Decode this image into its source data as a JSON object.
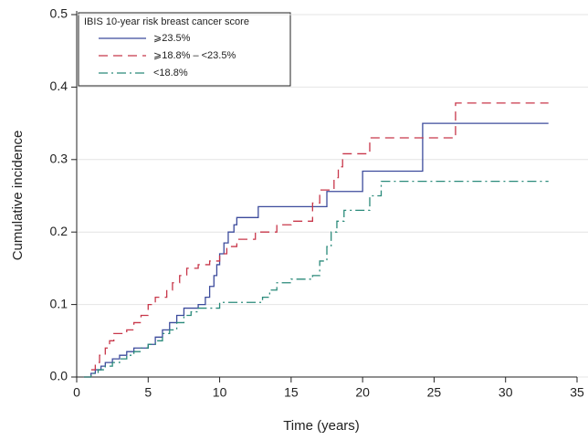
{
  "chart_data": {
    "type": "line",
    "step": "post",
    "xlabel": "Time (years)",
    "ylabel": "Cumulative incidence",
    "xlim": [
      0,
      35
    ],
    "xticks": [
      0,
      5,
      10,
      15,
      20,
      25,
      30,
      35
    ],
    "ylim": [
      0,
      0.5
    ],
    "yticks": [
      {
        "value": 0,
        "label": "0.0"
      },
      0.1,
      0.2,
      0.3,
      0.4,
      0.5
    ],
    "grid": true,
    "legend_position": "upper left",
    "legend_title": "IBIS 10-year risk breast cancer score",
    "series": [
      {
        "name": "⩾23.5%",
        "color": "#3c4b9c",
        "linestyle": "solid",
        "x": [
          0.5,
          1,
          1.3,
          1.7,
          2,
          2.5,
          3,
          3.5,
          4,
          5,
          5.5,
          6,
          6.5,
          7,
          7.5,
          8.5,
          9,
          9.3,
          9.6,
          9.8,
          10,
          10.3,
          10.6,
          11,
          11.2,
          12.7,
          17.5,
          20,
          24.2,
          33
        ],
        "values": [
          0,
          0.005,
          0.01,
          0.015,
          0.02,
          0.025,
          0.03,
          0.035,
          0.04,
          0.045,
          0.055,
          0.065,
          0.075,
          0.085,
          0.095,
          0.1,
          0.11,
          0.125,
          0.14,
          0.155,
          0.17,
          0.185,
          0.2,
          0.21,
          0.22,
          0.235,
          0.256,
          0.284,
          0.35,
          0.35
        ]
      },
      {
        "name": "⩾18.8% – <23.5%",
        "color": "#c8374a",
        "linestyle": "dashed",
        "x": [
          0.5,
          1,
          1.3,
          1.6,
          2,
          2.3,
          2.6,
          3.5,
          4,
          4.5,
          5,
          5.5,
          6.3,
          6.7,
          7.2,
          7.7,
          8.5,
          9.3,
          10,
          10.5,
          11.2,
          12.5,
          14,
          15,
          16.5,
          17,
          18,
          18.3,
          18.6,
          20.5,
          26.5,
          33
        ],
        "values": [
          0,
          0.01,
          0.02,
          0.03,
          0.04,
          0.05,
          0.06,
          0.065,
          0.075,
          0.085,
          0.1,
          0.11,
          0.12,
          0.13,
          0.14,
          0.15,
          0.155,
          0.16,
          0.17,
          0.18,
          0.19,
          0.2,
          0.21,
          0.215,
          0.24,
          0.258,
          0.275,
          0.29,
          0.308,
          0.33,
          0.378,
          0.378
        ]
      },
      {
        "name": "<18.8%",
        "color": "#2a8a7a",
        "linestyle": "dashdot",
        "x": [
          0.5,
          1,
          1.5,
          2,
          2.5,
          3,
          3.5,
          4,
          4.5,
          5,
          5.5,
          6,
          6.5,
          7,
          7.5,
          8,
          8.5,
          10,
          13,
          13.5,
          14,
          15,
          16.5,
          17,
          17.5,
          17.8,
          18.2,
          18.7,
          20.5,
          21.3,
          33
        ],
        "values": [
          0,
          0.005,
          0.01,
          0.015,
          0.02,
          0.025,
          0.03,
          0.035,
          0.04,
          0.045,
          0.05,
          0.06,
          0.065,
          0.075,
          0.085,
          0.09,
          0.095,
          0.103,
          0.11,
          0.12,
          0.13,
          0.135,
          0.14,
          0.16,
          0.18,
          0.2,
          0.215,
          0.23,
          0.25,
          0.27,
          0.27
        ]
      }
    ]
  }
}
